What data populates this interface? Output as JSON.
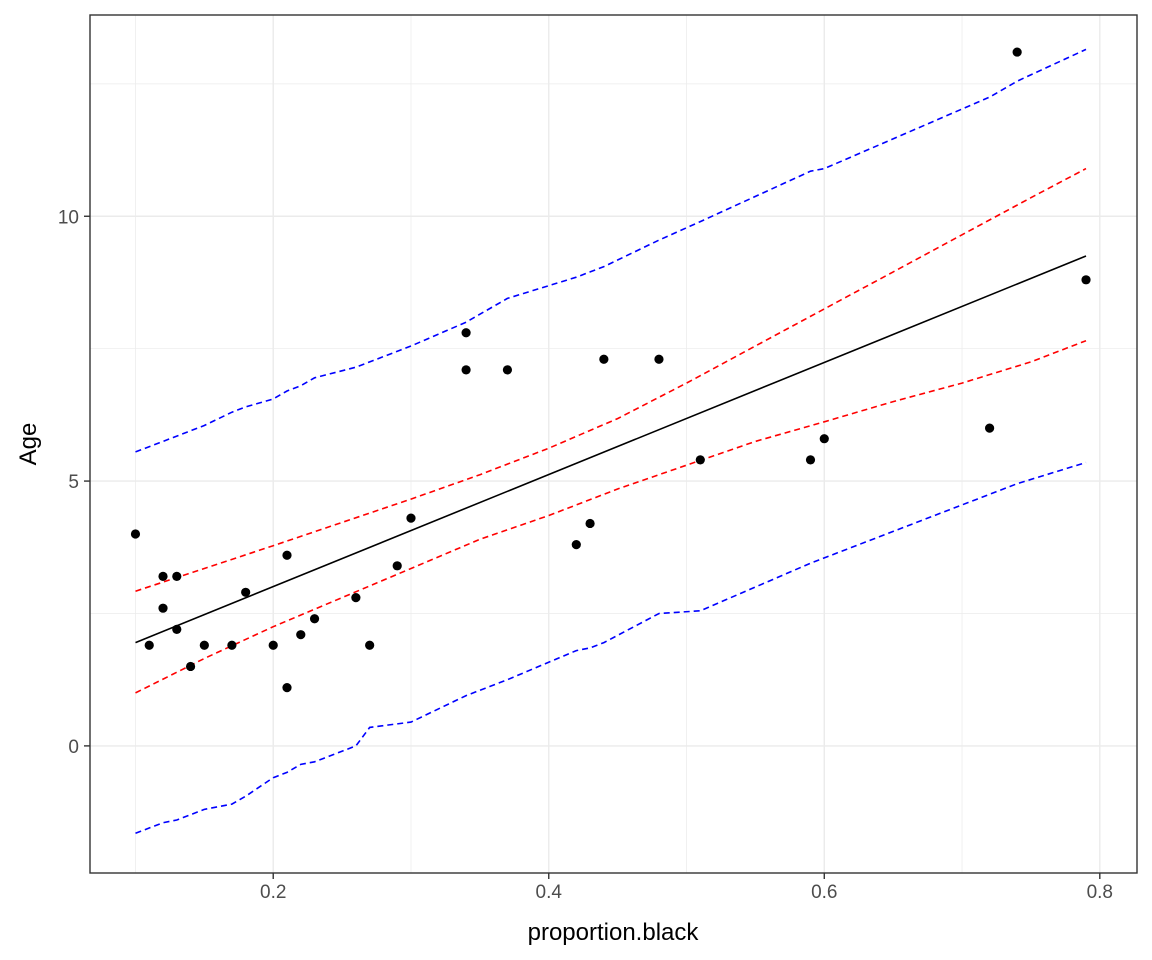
{
  "chart_data": {
    "type": "scatter",
    "xlabel": "proportion.black",
    "ylabel": "Age",
    "xlim": [
      0.067,
      0.827
    ],
    "ylim": [
      -2.4,
      13.8
    ],
    "x_ticks": [
      0.2,
      0.4,
      0.6,
      0.8
    ],
    "x_tick_labels": [
      "0.2",
      "0.4",
      "0.6",
      "0.8"
    ],
    "y_ticks": [
      0,
      5,
      10
    ],
    "y_tick_labels": [
      "0",
      "5",
      "10"
    ],
    "grid": true,
    "points": {
      "x": [
        0.1,
        0.11,
        0.12,
        0.12,
        0.13,
        0.13,
        0.14,
        0.15,
        0.17,
        0.18,
        0.2,
        0.21,
        0.21,
        0.22,
        0.23,
        0.26,
        0.27,
        0.29,
        0.3,
        0.34,
        0.34,
        0.37,
        0.42,
        0.43,
        0.44,
        0.48,
        0.51,
        0.59,
        0.6,
        0.72,
        0.74,
        0.79
      ],
      "y": [
        4.0,
        1.9,
        3.2,
        2.6,
        3.2,
        2.2,
        1.5,
        1.9,
        1.9,
        2.9,
        1.9,
        1.1,
        3.6,
        2.1,
        2.4,
        2.8,
        1.9,
        3.4,
        4.3,
        7.8,
        7.1,
        7.1,
        3.8,
        4.2,
        7.3,
        7.3,
        5.4,
        5.4,
        5.8,
        6.0,
        13.1,
        8.8
      ]
    },
    "series": [
      {
        "role": "fit",
        "color": "#000000",
        "dashed": false,
        "x": [
          0.1,
          0.79
        ],
        "y": [
          1.95,
          9.25
        ]
      },
      {
        "role": "confidence-upper",
        "color": "#ff0000",
        "dashed": true,
        "x": [
          0.1,
          0.15,
          0.2,
          0.25,
          0.3,
          0.35,
          0.4,
          0.45,
          0.5,
          0.55,
          0.6,
          0.65,
          0.7,
          0.75,
          0.79
        ],
        "y": [
          2.92,
          3.35,
          3.78,
          4.22,
          4.66,
          5.12,
          5.62,
          6.18,
          6.85,
          7.55,
          8.25,
          8.95,
          9.65,
          10.35,
          10.9
        ]
      },
      {
        "role": "confidence-lower",
        "color": "#ff0000",
        "dashed": true,
        "x": [
          0.1,
          0.15,
          0.2,
          0.25,
          0.3,
          0.35,
          0.4,
          0.45,
          0.5,
          0.55,
          0.6,
          0.65,
          0.7,
          0.75,
          0.79
        ],
        "y": [
          1.0,
          1.65,
          2.25,
          2.8,
          3.35,
          3.9,
          4.35,
          4.85,
          5.3,
          5.75,
          6.12,
          6.5,
          6.85,
          7.25,
          7.65
        ]
      },
      {
        "role": "prediction-upper",
        "color": "#0000ff",
        "dashed": true,
        "x": [
          0.1,
          0.12,
          0.13,
          0.15,
          0.17,
          0.18,
          0.2,
          0.21,
          0.22,
          0.23,
          0.26,
          0.27,
          0.3,
          0.34,
          0.37,
          0.42,
          0.43,
          0.44,
          0.48,
          0.51,
          0.59,
          0.6,
          0.72,
          0.74,
          0.79
        ],
        "y": [
          5.55,
          5.75,
          5.85,
          6.05,
          6.3,
          6.4,
          6.55,
          6.7,
          6.8,
          6.95,
          7.15,
          7.25,
          7.55,
          8.0,
          8.45,
          8.85,
          8.95,
          9.05,
          9.55,
          9.9,
          10.85,
          10.9,
          12.25,
          12.55,
          13.15
        ]
      },
      {
        "role": "prediction-lower",
        "color": "#0000ff",
        "dashed": true,
        "x": [
          0.1,
          0.12,
          0.13,
          0.15,
          0.17,
          0.18,
          0.2,
          0.21,
          0.22,
          0.23,
          0.26,
          0.27,
          0.3,
          0.34,
          0.37,
          0.42,
          0.43,
          0.44,
          0.48,
          0.51,
          0.59,
          0.6,
          0.72,
          0.74,
          0.79
        ],
        "y": [
          -1.65,
          -1.45,
          -1.4,
          -1.2,
          -1.1,
          -0.95,
          -0.6,
          -0.5,
          -0.35,
          -0.3,
          0.0,
          0.35,
          0.45,
          0.95,
          1.25,
          1.8,
          1.85,
          1.95,
          2.5,
          2.55,
          3.45,
          3.55,
          4.75,
          4.95,
          5.35
        ]
      }
    ],
    "colors": {
      "point": "#000000",
      "grid": "#ebebeb",
      "panel_border": "#333333",
      "tick_text": "#4d4d4d"
    }
  }
}
